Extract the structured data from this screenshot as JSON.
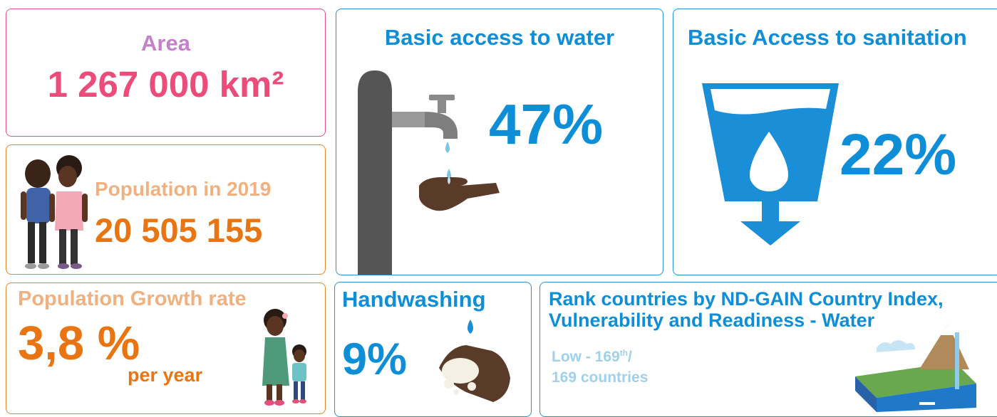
{
  "colors": {
    "pink": "#ec4c7a",
    "lilac": "#c481c9",
    "orange": "#e87512",
    "light_orange": "#f1b07f",
    "blue": "#0f8ed8",
    "light_blue": "#9fd0ec"
  },
  "area": {
    "label": "Area",
    "value": "1 267 000 km²"
  },
  "population": {
    "label": "Population in 2019",
    "value": "20 505 155",
    "icon": "couple-illustration"
  },
  "growth": {
    "label": "Population Growth rate",
    "value": "3,8 %",
    "unit": "per year",
    "icon": "mother-child-illustration"
  },
  "water": {
    "label": "Basic access to water",
    "value": "47%",
    "icon": "water-tap-icon"
  },
  "sanitation": {
    "label": "Basic Access to sanitation",
    "value": "22%",
    "icon": "water-filter-icon"
  },
  "handwashing": {
    "label": "Handwashing",
    "value": "9%",
    "icon": "washing-hands-icon"
  },
  "rank": {
    "label_line1": "Rank countries by ND-GAIN Country Index,",
    "label_line2": "Vulnerability and Readiness - Water",
    "value_prefix": "Low - 169",
    "value_suffix": "th",
    "value_slash": "/",
    "value_line2": "169 countries",
    "icon": "water-cycle-icon"
  }
}
